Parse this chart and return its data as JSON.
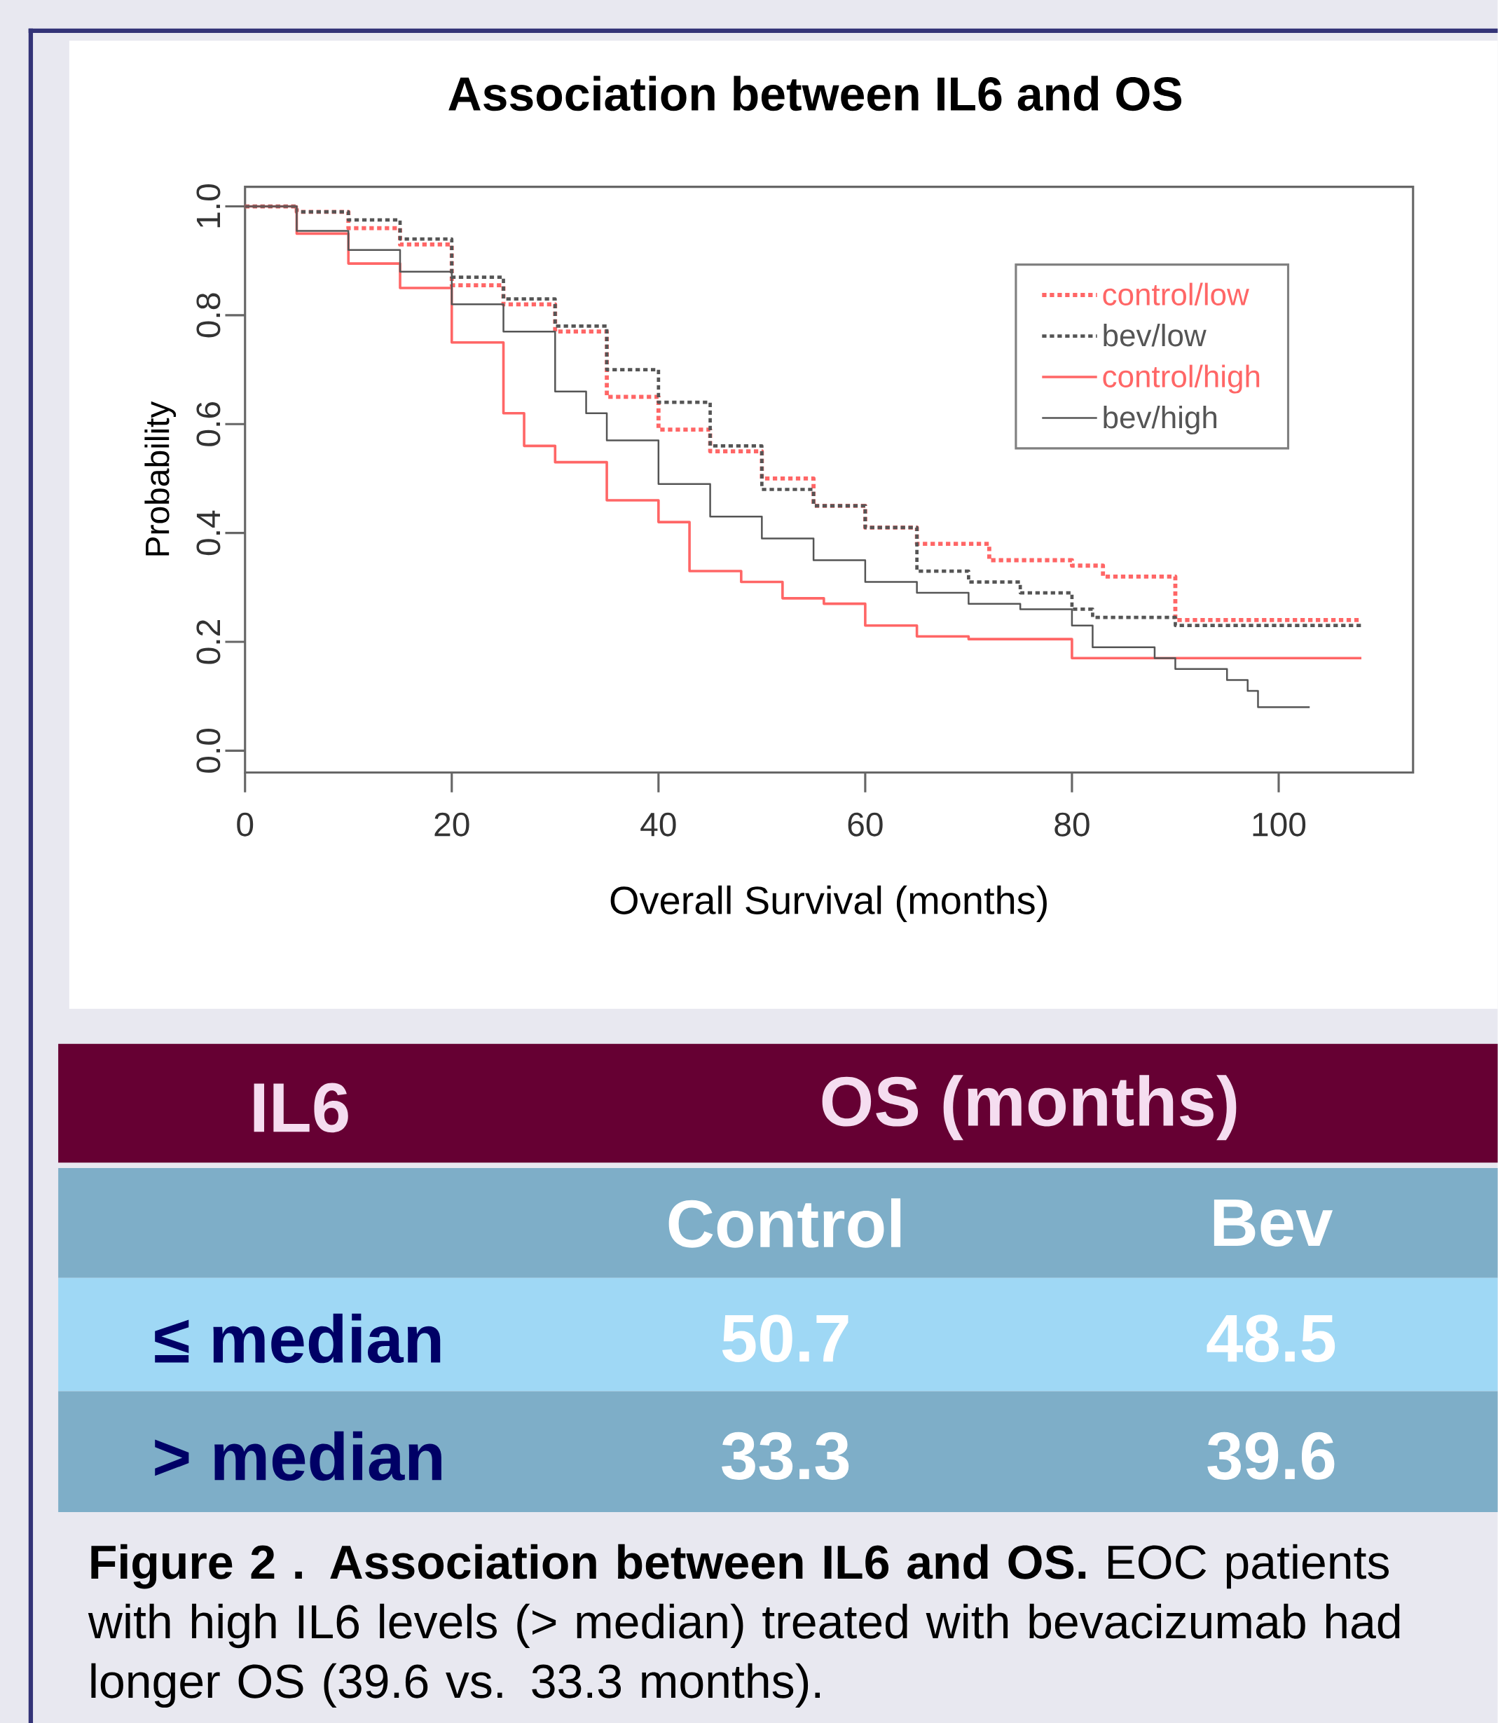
{
  "chart_data": {
    "type": "step",
    "title": "Association between IL6 and OS",
    "xlabel": "Overall Survival (months)",
    "ylabel": "Probability",
    "xlim": [
      0,
      113
    ],
    "ylim": [
      -0.04,
      1.036
    ],
    "xticks": [
      0,
      20,
      40,
      60,
      80,
      100
    ],
    "yticks": [
      {
        "value": 0,
        "label": "0.0"
      },
      0.2,
      0.4,
      0.6,
      0.8,
      {
        "value": 1,
        "label": "1.0"
      }
    ],
    "legend": "top right",
    "series": [
      {
        "name": "control/low",
        "color": "#ff6666",
        "line_style": "dashed",
        "x": [
          0,
          5,
          10,
          15,
          20,
          25,
          30,
          35,
          40,
          45,
          50,
          55,
          60,
          65,
          70,
          72,
          80,
          83,
          88,
          90,
          108
        ],
        "values": [
          1.0,
          0.99,
          0.96,
          0.93,
          0.855,
          0.82,
          0.77,
          0.65,
          0.59,
          0.55,
          0.5,
          0.45,
          0.41,
          0.38,
          0.38,
          0.35,
          0.34,
          0.32,
          0.32,
          0.24,
          0.24
        ]
      },
      {
        "name": "bev/low",
        "color": "#555555",
        "line_style": "dashed",
        "x": [
          0,
          5,
          10,
          15,
          20,
          25,
          30,
          35,
          40,
          45,
          50,
          55,
          60,
          65,
          70,
          75,
          80,
          82,
          88,
          90,
          108
        ],
        "values": [
          1.0,
          0.99,
          0.975,
          0.94,
          0.87,
          0.83,
          0.78,
          0.7,
          0.64,
          0.56,
          0.48,
          0.45,
          0.41,
          0.33,
          0.31,
          0.29,
          0.26,
          0.245,
          0.245,
          0.23,
          0.23
        ]
      },
      {
        "name": "control/high",
        "color": "#ff6666",
        "line_style": "solid",
        "x": [
          0,
          5,
          10,
          15,
          20,
          25,
          27,
          30,
          35,
          40,
          43,
          48,
          52,
          56,
          60,
          65,
          70,
          77,
          80,
          108
        ],
        "values": [
          1.0,
          0.95,
          0.895,
          0.85,
          0.75,
          0.62,
          0.56,
          0.53,
          0.46,
          0.42,
          0.33,
          0.31,
          0.28,
          0.27,
          0.23,
          0.21,
          0.205,
          0.205,
          0.17,
          0.17
        ]
      },
      {
        "name": "bev/high",
        "color": "#555555",
        "line_style": "solid",
        "x": [
          0,
          5,
          10,
          15,
          20,
          25,
          30,
          33,
          35,
          40,
          45,
          50,
          55,
          60,
          65,
          70,
          75,
          80,
          82,
          88,
          90,
          95,
          97,
          98,
          103
        ],
        "values": [
          1.0,
          0.955,
          0.92,
          0.88,
          0.82,
          0.77,
          0.66,
          0.62,
          0.57,
          0.49,
          0.43,
          0.39,
          0.35,
          0.31,
          0.29,
          0.27,
          0.26,
          0.23,
          0.19,
          0.17,
          0.15,
          0.13,
          0.11,
          0.08,
          0.08
        ]
      }
    ],
    "annotations": [
      "IL6",
      "OS (months)",
      "Control",
      "Bev",
      "≤ median",
      "50.7",
      "48.5",
      "> median",
      "33.3",
      "39.6",
      "**Figure 2 . Association between IL6 and OS.** EOC patients with high IL6 levels (> median) treated with bevacizumab had longer OS (39.6 vs. 33.3 months)."
    ]
  }
}
